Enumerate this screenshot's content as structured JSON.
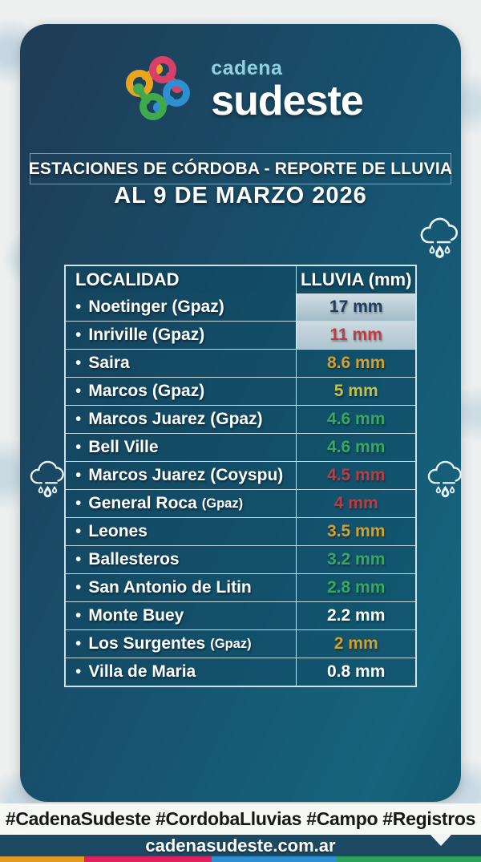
{
  "logo": {
    "top": "cadena",
    "main": "sudeste",
    "icon": "knot-logo-icon",
    "icon_colors": {
      "orange": "#e9a51f",
      "pink": "#d84069",
      "blue": "#2f8fd0",
      "green": "#3fa94c"
    }
  },
  "header": {
    "title": "ESTACIONES DE CÓRDOBA - REPORTE DE LLUVIA",
    "date": "AL 9 DE MARZO 2026"
  },
  "icons": {
    "rain_cloud": "rain-cloud-icon"
  },
  "colors": {
    "navy": "#1d3c5e",
    "red": "#c23a40",
    "gold": "#d2a02f",
    "olive": "#c6bf4b",
    "green": "#37a95e",
    "white": "#ffffff"
  },
  "table": {
    "bullet": "•",
    "columns": [
      "LOCALIDAD",
      "LLUVIA (mm)"
    ],
    "rows": [
      {
        "name": "Noetinger",
        "suffix": "(Gpaz)",
        "small_suffix": false,
        "value": "17 mm",
        "value_color": "navy",
        "value_bg": "vlight1"
      },
      {
        "name": "Inriville",
        "suffix": "(Gpaz)",
        "small_suffix": false,
        "value": "11 mm",
        "value_color": "red",
        "value_bg": "vlight2"
      },
      {
        "name": "Saira",
        "suffix": "",
        "small_suffix": false,
        "value": "8.6 mm",
        "value_color": "gold",
        "value_bg": ""
      },
      {
        "name": "Marcos",
        "suffix": "(Gpaz)",
        "small_suffix": false,
        "value": "5 mm",
        "value_color": "olive",
        "value_bg": ""
      },
      {
        "name": "Marcos Juarez",
        "suffix": "(Gpaz)",
        "small_suffix": false,
        "value": "4.6 mm",
        "value_color": "green",
        "value_bg": ""
      },
      {
        "name": "Bell Ville",
        "suffix": "",
        "small_suffix": false,
        "value": "4.6 mm",
        "value_color": "green",
        "value_bg": ""
      },
      {
        "name": "Marcos Juarez",
        "suffix": "(Coyspu)",
        "small_suffix": false,
        "value": "4.5 mm",
        "value_color": "red",
        "value_bg": ""
      },
      {
        "name": "General Roca",
        "suffix": "(Gpaz)",
        "small_suffix": true,
        "value": "4 mm",
        "value_color": "red",
        "value_bg": ""
      },
      {
        "name": "Leones",
        "suffix": "",
        "small_suffix": false,
        "value": "3.5 mm",
        "value_color": "gold",
        "value_bg": ""
      },
      {
        "name": "Ballesteros",
        "suffix": "",
        "small_suffix": false,
        "value": "3.2 mm",
        "value_color": "green",
        "value_bg": ""
      },
      {
        "name": "San Antonio de Litin",
        "suffix": "",
        "small_suffix": false,
        "value": "2.8 mm",
        "value_color": "green",
        "value_bg": ""
      },
      {
        "name": "Monte Buey",
        "suffix": "",
        "small_suffix": false,
        "value": "2.2 mm",
        "value_color": "white",
        "value_bg": ""
      },
      {
        "name": "Los Surgentes",
        "suffix": "(Gpaz)",
        "small_suffix": true,
        "value": "2 mm",
        "value_color": "gold",
        "value_bg": ""
      },
      {
        "name": "Villa de Maria",
        "suffix": "",
        "small_suffix": false,
        "value": "0.8 mm",
        "value_color": "white",
        "value_bg": ""
      }
    ]
  },
  "footer": {
    "hashtags": "#CadenaSudeste #CordobaLluvias #Campo #Registros",
    "website": "cadenasudeste.com.ar",
    "bar_segments": [
      {
        "color": "#e39a20",
        "width": "17.5%"
      },
      {
        "color": "#df2160",
        "width": "26.5%"
      },
      {
        "color": "#2e8fd2",
        "width": "26%"
      },
      {
        "color": "#2ba35c",
        "width": "30%"
      }
    ]
  }
}
